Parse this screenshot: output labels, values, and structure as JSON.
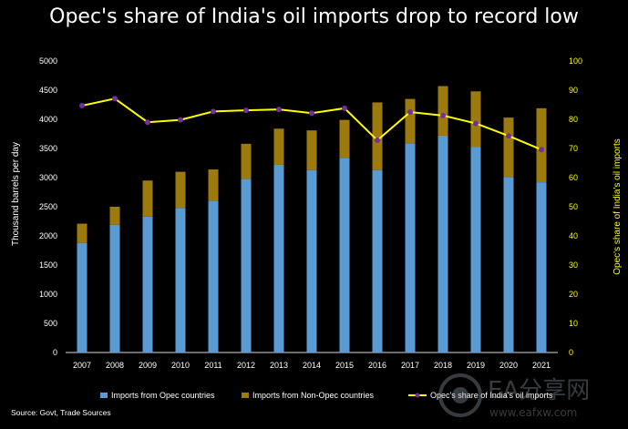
{
  "title": "Opec's share of India's oil imports drop to record low",
  "source": "Source:  Govt, Trade Sources",
  "watermark": {
    "brand": "EA分享网",
    "url": "www.eafxw.com"
  },
  "colors": {
    "opec": "#5b9bd5",
    "non_opec": "#9c7a0c",
    "share_line": "#ffff00",
    "share_marker": "#7030a0",
    "background": "#000000"
  },
  "chart_data": {
    "type": "bar",
    "stacked": true,
    "title": "Opec's share of India's oil imports drop to record low",
    "categories": [
      "2007",
      "2008",
      "2009",
      "2010",
      "2011",
      "2012",
      "2013",
      "2014",
      "2015",
      "2016",
      "2017",
      "2018",
      "2019",
      "2020",
      "2021"
    ],
    "series": [
      {
        "name": "Imports from Opec countries",
        "type": "bar",
        "axis": "left",
        "values": [
          1880,
          2190,
          2330,
          2480,
          2600,
          2980,
          3220,
          3130,
          3340,
          3130,
          3590,
          3720,
          3530,
          3010,
          2920
        ]
      },
      {
        "name": "Imports from Non-Opec countries",
        "type": "bar",
        "axis": "left",
        "values": [
          330,
          310,
          620,
          620,
          540,
          600,
          620,
          680,
          650,
          1160,
          760,
          850,
          950,
          1020,
          1270
        ]
      },
      {
        "name": "Opec's share of India's oil imports",
        "type": "line",
        "axis": "right",
        "values": [
          84.7,
          87.1,
          79.0,
          79.8,
          82.7,
          83.1,
          83.4,
          82.1,
          83.8,
          72.8,
          82.5,
          81.3,
          78.6,
          74.3,
          69.6
        ]
      }
    ],
    "ylabel": "Thousand barrels per day",
    "ylabel_right": "Opec's share of India's oil imports",
    "ylim": [
      0,
      5000
    ],
    "ylim_right": [
      0,
      100
    ],
    "yticks": [
      "0",
      "500",
      "1000",
      "1500",
      "2000",
      "2500",
      "3000",
      "3500",
      "4000",
      "4500",
      "5000"
    ],
    "yticks_right": [
      "0",
      "10",
      "20",
      "30",
      "40",
      "50",
      "60",
      "70",
      "80",
      "90",
      "100"
    ],
    "grid": false,
    "legend_position": "bottom"
  }
}
